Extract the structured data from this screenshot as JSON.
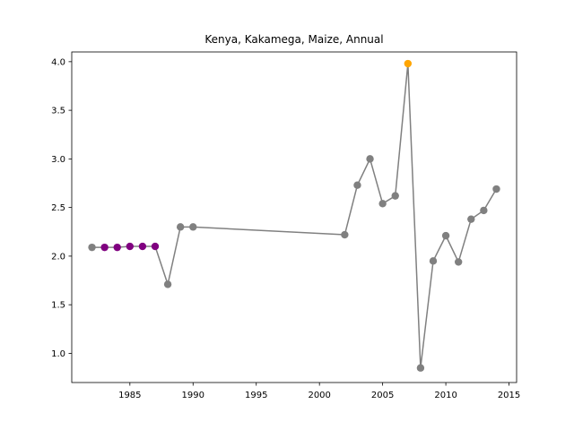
{
  "chart_data": {
    "type": "line",
    "title": "Kenya, Kakamega, Maize, Annual",
    "xlabel": "",
    "ylabel": "",
    "xlim": [
      1980.4,
      2015.6
    ],
    "ylim": [
      0.7,
      4.1
    ],
    "x_ticks": [
      1985,
      1990,
      1995,
      2000,
      2005,
      2010,
      2015
    ],
    "y_ticks": [
      1.0,
      1.5,
      2.0,
      2.5,
      3.0,
      3.5,
      4.0
    ],
    "grid": false,
    "legend": "none",
    "line_color": "#808080",
    "series": [
      {
        "x": [
          1982,
          1983,
          1984,
          1985,
          1986,
          1987,
          1988,
          1989,
          1990,
          2002,
          2003,
          2004,
          2005,
          2006,
          2007,
          2008,
          2009,
          2010,
          2011,
          2012,
          2013,
          2014
        ],
        "values": [
          2.09,
          2.09,
          2.09,
          2.1,
          2.1,
          2.1,
          1.71,
          2.3,
          2.3,
          2.22,
          2.73,
          3.0,
          2.54,
          2.62,
          3.98,
          0.85,
          1.95,
          2.21,
          1.94,
          2.38,
          2.47,
          2.69
        ],
        "point_colors": [
          "#808080",
          "#800080",
          "#800080",
          "#800080",
          "#800080",
          "#800080",
          "#808080",
          "#808080",
          "#808080",
          "#808080",
          "#808080",
          "#808080",
          "#808080",
          "#808080",
          "#ffa500",
          "#808080",
          "#808080",
          "#808080",
          "#808080",
          "#808080",
          "#808080",
          "#808080"
        ]
      }
    ]
  }
}
